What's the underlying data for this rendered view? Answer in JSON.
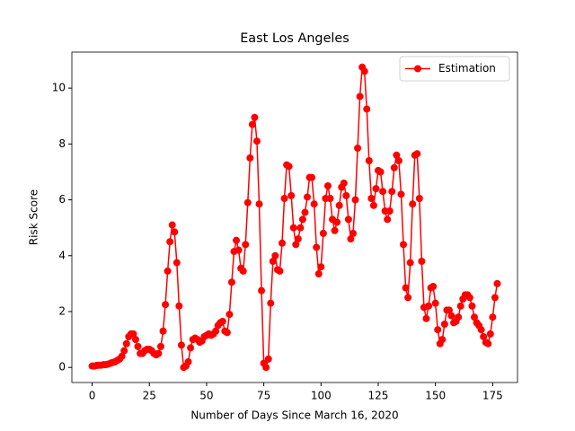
{
  "chart_data": {
    "type": "line",
    "title": "East Los Angeles",
    "x_label": "Number of Days Since March 16, 2020",
    "y_label": "Risk Score",
    "x": [
      0,
      1,
      2,
      3,
      4,
      5,
      6,
      7,
      8,
      9,
      10,
      11,
      12,
      13,
      14,
      15,
      16,
      17,
      18,
      19,
      20,
      21,
      22,
      23,
      24,
      25,
      26,
      27,
      28,
      29,
      30,
      31,
      32,
      33,
      34,
      35,
      36,
      37,
      38,
      39,
      40,
      41,
      42,
      43,
      44,
      45,
      46,
      47,
      48,
      49,
      50,
      51,
      52,
      53,
      54,
      55,
      56,
      57,
      58,
      59,
      60,
      61,
      62,
      63,
      64,
      65,
      66,
      67,
      68,
      69,
      70,
      71,
      72,
      73,
      74,
      75,
      76,
      77,
      78,
      79,
      80,
      81,
      82,
      83,
      84,
      85,
      86,
      87,
      88,
      89,
      90,
      91,
      92,
      93,
      94,
      95,
      96,
      97,
      98,
      99,
      100,
      101,
      102,
      103,
      104,
      105,
      106,
      107,
      108,
      109,
      110,
      111,
      112,
      113,
      114,
      115,
      116,
      117,
      118,
      119,
      120,
      121,
      122,
      123,
      124,
      125,
      126,
      127,
      128,
      129,
      130,
      131,
      132,
      133,
      134,
      135,
      136,
      137,
      138,
      139,
      140,
      141,
      142,
      143,
      144,
      145,
      146,
      147,
      148,
      149,
      150,
      151,
      152,
      153,
      154,
      155,
      156,
      157,
      158,
      159,
      160,
      161,
      162,
      163,
      164,
      165,
      166,
      167,
      168,
      169,
      170,
      171,
      172,
      173,
      174,
      175,
      176,
      177
    ],
    "series": [
      {
        "name": "Estimation",
        "color": "#ff0000",
        "values": [
          0.05,
          0.05,
          0.07,
          0.08,
          0.08,
          0.1,
          0.1,
          0.12,
          0.15,
          0.18,
          0.2,
          0.25,
          0.3,
          0.4,
          0.6,
          0.85,
          1.1,
          1.2,
          1.2,
          1.0,
          0.75,
          0.5,
          0.5,
          0.6,
          0.65,
          0.65,
          0.6,
          0.5,
          0.45,
          0.5,
          0.75,
          1.3,
          2.25,
          3.45,
          4.5,
          5.1,
          4.85,
          3.75,
          2.2,
          0.8,
          0.0,
          0.05,
          0.2,
          0.7,
          1.0,
          1.05,
          1.0,
          0.9,
          0.95,
          1.1,
          1.15,
          1.2,
          1.15,
          1.2,
          1.3,
          1.5,
          1.6,
          1.65,
          1.3,
          1.25,
          1.9,
          3.05,
          4.15,
          4.55,
          4.2,
          3.55,
          3.45,
          4.4,
          5.9,
          7.5,
          8.7,
          8.95,
          8.1,
          5.85,
          2.75,
          0.15,
          0.0,
          0.3,
          2.3,
          3.8,
          4.0,
          3.5,
          3.45,
          4.45,
          6.05,
          7.25,
          7.2,
          6.15,
          5.0,
          4.4,
          4.6,
          5.0,
          5.3,
          5.55,
          6.1,
          6.8,
          6.8,
          5.85,
          4.3,
          3.35,
          3.6,
          4.8,
          6.05,
          6.5,
          6.05,
          5.3,
          4.9,
          5.2,
          5.8,
          6.45,
          6.6,
          6.15,
          5.3,
          4.6,
          4.8,
          6.0,
          7.85,
          9.7,
          10.75,
          10.6,
          9.25,
          7.4,
          6.05,
          5.8,
          6.4,
          7.05,
          7.0,
          6.3,
          5.6,
          5.3,
          5.6,
          6.3,
          7.15,
          7.6,
          7.4,
          6.2,
          4.4,
          2.85,
          2.5,
          3.75,
          5.85,
          7.6,
          7.65,
          6.05,
          3.8,
          2.15,
          1.75,
          2.2,
          2.85,
          2.9,
          2.3,
          1.35,
          0.85,
          1.0,
          1.55,
          2.05,
          2.05,
          1.85,
          1.6,
          1.65,
          1.8,
          2.2,
          2.45,
          2.6,
          2.6,
          2.5,
          2.2,
          1.8,
          1.6,
          1.5,
          1.35,
          1.1,
          0.9,
          0.85,
          1.2,
          1.8,
          2.5,
          3.0
        ]
      }
    ],
    "xlim": [
      -8.85,
      185.85
    ],
    "ylim": [
      -0.54,
      11.29
    ],
    "xticks": [
      0,
      25,
      50,
      75,
      100,
      125,
      150,
      175
    ],
    "yticks": [
      0,
      2,
      4,
      6,
      8,
      10
    ],
    "legend": "upper right"
  }
}
